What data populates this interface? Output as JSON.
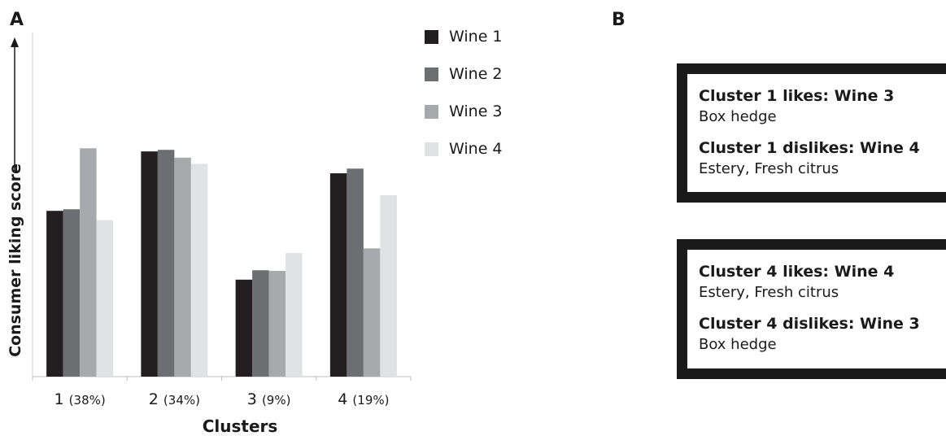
{
  "panel_a_label": "A",
  "panel_b_label": "B",
  "chart_data": {
    "type": "bar",
    "categories": [
      "1",
      "2",
      "3",
      "4"
    ],
    "category_notes": [
      "(38%)",
      "(34%)",
      "(9%)",
      "(19%)"
    ],
    "series": [
      {
        "name": "Wine 1",
        "color": "#231f20",
        "values": [
          5.3,
          7.2,
          3.1,
          6.5
        ]
      },
      {
        "name": "Wine 2",
        "color": "#6d6e71",
        "values": [
          5.35,
          7.25,
          3.4,
          6.65
        ]
      },
      {
        "name": "Wine 3",
        "color": "#a7a9ac",
        "values": [
          7.3,
          7.0,
          3.38,
          4.1
        ]
      },
      {
        "name": "Wine 4",
        "color": "#e1e2e3",
        "values": [
          5.0,
          6.8,
          3.95,
          5.8
        ]
      }
    ],
    "xlabel": "Clusters",
    "ylabel": "Consumer liking score",
    "ylim": [
      0,
      11
    ],
    "grid": false,
    "legend_position": "top-right"
  },
  "boxes": [
    {
      "likes_label": "Cluster 1 likes: Wine 3",
      "likes_attributes": "Box hedge",
      "dislikes_label": "Cluster 1 dislikes: Wine 4",
      "dislikes_attributes": "Estery, Fresh citrus"
    },
    {
      "likes_label": "Cluster 4 likes: Wine 4",
      "likes_attributes": "Estery, Fresh citrus",
      "dislikes_label": "Cluster 4 dislikes: Wine 3",
      "dislikes_attributes": "Box hedge"
    }
  ]
}
